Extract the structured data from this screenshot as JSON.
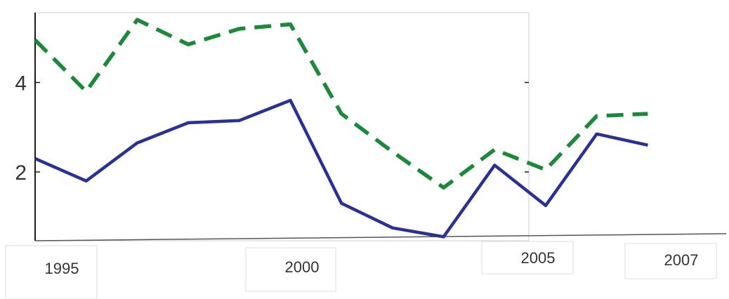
{
  "chart_data": {
    "type": "line",
    "title": "",
    "xlabel": "",
    "ylabel": "",
    "x": [
      1995,
      1996,
      1997,
      1998,
      1999,
      2000,
      2001,
      2002,
      2003,
      2004,
      2005,
      2006,
      2007
    ],
    "xticks": [
      "1995",
      "2000",
      "2005",
      "2007"
    ],
    "yticks": [
      "2",
      "4"
    ],
    "ylim": [
      0.7,
      5.5
    ],
    "grid": false,
    "legend": "none",
    "series": [
      {
        "color": "#2a3194",
        "style": "solid",
        "values": [
          2.3,
          1.8,
          2.65,
          3.1,
          3.15,
          3.6,
          1.3,
          0.75,
          0.55,
          2.15,
          1.25,
          2.85,
          2.6
        ]
      },
      {
        "color": "#1a8a3a",
        "style": "dashed",
        "values": [
          4.95,
          3.8,
          5.4,
          4.85,
          5.2,
          5.3,
          3.3,
          2.45,
          1.65,
          2.5,
          2.05,
          3.25,
          3.3
        ]
      }
    ]
  }
}
